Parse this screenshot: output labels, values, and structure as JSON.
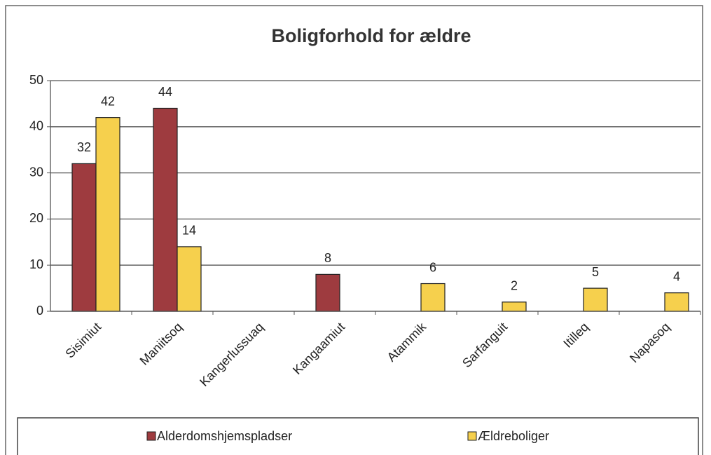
{
  "chart_data": {
    "type": "bar",
    "title": "Boligforhold for ældre",
    "categories": [
      "Sisimiut",
      "Maniitsoq",
      "Kangerlussuaq",
      "Kangaamiut",
      "Atammik",
      "Sarfanguit",
      "Itilleq",
      "Napasoq"
    ],
    "series": [
      {
        "name": "Alderdomshjemspladser",
        "color": "#9e3b3f",
        "values": [
          32,
          44,
          null,
          8,
          null,
          null,
          null,
          null
        ]
      },
      {
        "name": "Ældreboliger",
        "color": "#f6d04d",
        "values": [
          42,
          14,
          null,
          null,
          6,
          2,
          5,
          4
        ]
      }
    ],
    "ylim": [
      0,
      50
    ],
    "yticks": [
      0,
      10,
      20,
      30,
      40,
      50
    ],
    "grid": true,
    "legend": "bottom"
  }
}
